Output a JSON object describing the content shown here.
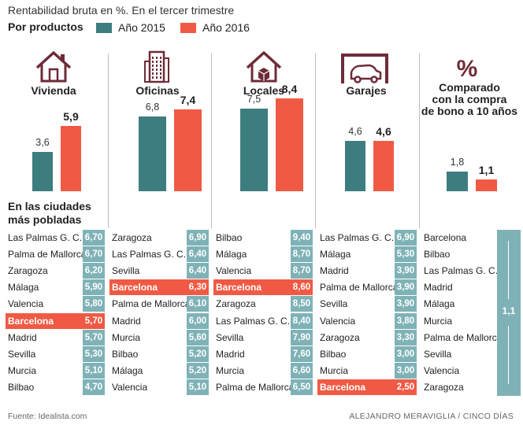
{
  "title": "Rentabilidad bruta en %. En el tercer trimestre",
  "subtitle": "Por productos",
  "colors": {
    "y2015": "#3e7d7f",
    "y2016": "#f05a44",
    "icon": "#6e2b37",
    "city_value_bg": "#7fb2b7",
    "highlight": "#f05a44"
  },
  "chart_data": {
    "type": "bar",
    "title": "Rentabilidad bruta en %. En el tercer trimestre",
    "categories": [
      "Vivienda",
      "Oficinas",
      "Locales",
      "Garajes",
      "Comparado con la compra de bono a 10 años"
    ],
    "series": [
      {
        "name": "Año 2015",
        "values": [
          3.6,
          6.8,
          7.5,
          4.6,
          1.8
        ],
        "labels": [
          "3,6",
          "6,8",
          "7,5",
          "4,6",
          "1,8"
        ]
      },
      {
        "name": "Año 2016",
        "values": [
          5.9,
          7.4,
          8.4,
          4.6,
          1.1
        ],
        "labels": [
          "5,9",
          "7,4",
          "8,4",
          "4,6",
          "1,1"
        ]
      }
    ],
    "ylim": [
      0,
      9.5
    ]
  },
  "panels": [
    {
      "label": "Vivienda",
      "icon": "house-icon"
    },
    {
      "label": "Oficinas",
      "icon": "office-building-icon"
    },
    {
      "label": "Locales",
      "icon": "store-icon"
    },
    {
      "label": "Garajes",
      "icon": "garage-icon"
    },
    {
      "label": "Comparado\ncon la compra\nde bono a 10 años",
      "icon": "percent-icon",
      "glyph": "%"
    }
  ],
  "cities_title": "En las ciudades\nmás pobladas",
  "cities": [
    [
      [
        "Las Palmas G. C.",
        "6,70"
      ],
      [
        "Palma de Mallorca",
        "6,70"
      ],
      [
        "Zaragoza",
        "6,20"
      ],
      [
        "Málaga",
        "5,90"
      ],
      [
        "Valencia",
        "5,80"
      ],
      [
        "Barcelona",
        "5,70"
      ],
      [
        "Madrid",
        "5,70"
      ],
      [
        "Sevilla",
        "5,30"
      ],
      [
        "Murcia",
        "5,10"
      ],
      [
        "Bilbao",
        "4,70"
      ]
    ],
    [
      [
        "Zaragoza",
        "6,90"
      ],
      [
        "Las Palmas G. C.",
        "6,40"
      ],
      [
        "Sevilla",
        "6,40"
      ],
      [
        "Barcelona",
        "6,30"
      ],
      [
        "Palma de Mallorca",
        "6,10"
      ],
      [
        "Madrid",
        "6,00"
      ],
      [
        "Murcia",
        "5,60"
      ],
      [
        "Bilbao",
        "5,20"
      ],
      [
        "Málaga",
        "5,20"
      ],
      [
        "Valencia",
        "5,10"
      ]
    ],
    [
      [
        "Bilbao",
        "9,40"
      ],
      [
        "Málaga",
        "8,70"
      ],
      [
        "Valencia",
        "8,70"
      ],
      [
        "Barcelona",
        "8,60"
      ],
      [
        "Zaragoza",
        "8,50"
      ],
      [
        "Las Palmas G. C.",
        "8,40"
      ],
      [
        "Sevilla",
        "7,90"
      ],
      [
        "Madrid",
        "7,60"
      ],
      [
        "Murcia",
        "6,60"
      ],
      [
        "Palma de Mallorca",
        "6,50"
      ]
    ],
    [
      [
        "Las Palmas G. C.",
        "6,90"
      ],
      [
        "Málaga",
        "5,30"
      ],
      [
        "Madrid",
        "3,90"
      ],
      [
        "Palma de Mallorca",
        "3,90"
      ],
      [
        "Sevilla",
        "3,90"
      ],
      [
        "Valencia",
        "3,80"
      ],
      [
        "Zaragoza",
        "3,30"
      ],
      [
        "Bilbao",
        "3,00"
      ],
      [
        "Murcia",
        "3,00"
      ],
      [
        "Barcelona",
        "2,50"
      ]
    ],
    [
      [
        "Barcelona"
      ],
      [
        "Bilbao"
      ],
      [
        "Las Palmas G. C."
      ],
      [
        "Madrid"
      ],
      [
        "Málaga"
      ],
      [
        "Murcia"
      ],
      [
        "Palma de Mallorca"
      ],
      [
        "Sevilla"
      ],
      [
        "Valencia"
      ],
      [
        "Zaragoza"
      ]
    ]
  ],
  "highlight_city": "Barcelona",
  "bond_value": "1,1",
  "footer_left": "Fuente: Idealista.com",
  "footer_right": "ALEJANDRO MERAVIGLIA / CINCO DÍAS"
}
